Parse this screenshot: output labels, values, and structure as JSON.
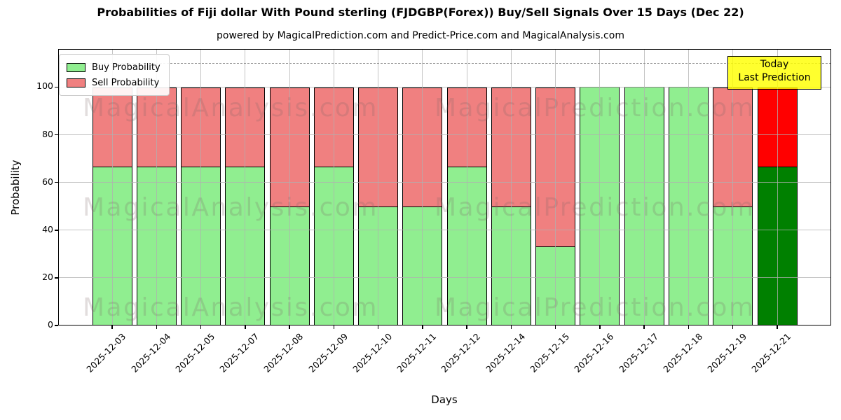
{
  "title": "Probabilities of Fiji dollar With Pound sterling (FJDGBP(Forex)) Buy/Sell Signals Over 15 Days (Dec 22)",
  "subtitle": "powered by MagicalPrediction.com and Predict-Price.com and MagicalAnalysis.com",
  "chart_data": {
    "type": "bar",
    "stacked": true,
    "title": "Probabilities of Fiji dollar With Pound sterling (FJDGBP(Forex)) Buy/Sell Signals Over 15 Days (Dec 22)",
    "xlabel": "Days",
    "ylabel": "Probability",
    "ylim": [
      0,
      116
    ],
    "yticks": [
      0,
      20,
      40,
      60,
      80,
      100
    ],
    "grid": true,
    "legend_position": "upper left",
    "dashed_threshold_y": 110,
    "categories": [
      "2025-12-03",
      "2025-12-04",
      "2025-12-05",
      "2025-12-07",
      "2025-12-08",
      "2025-12-09",
      "2025-12-10",
      "2025-12-11",
      "2025-12-12",
      "2025-12-14",
      "2025-12-15",
      "2025-12-16",
      "2025-12-17",
      "2025-12-18",
      "2025-12-19",
      "2025-12-21"
    ],
    "series": [
      {
        "name": "Buy Probability",
        "color": "#90ee90",
        "today_color": "#008000",
        "values": [
          66.67,
          66.67,
          66.67,
          66.67,
          50,
          66.67,
          50,
          50,
          66.67,
          50,
          33.33,
          100,
          100,
          100,
          50,
          66.67
        ]
      },
      {
        "name": "Sell Probability",
        "color": "#f08080",
        "today_color": "#ff0000",
        "values": [
          33.33,
          33.33,
          33.33,
          33.33,
          50,
          33.33,
          50,
          50,
          33.33,
          50,
          66.67,
          0,
          0,
          0,
          50,
          33.33
        ]
      }
    ],
    "today_index": 15
  },
  "annotation": {
    "line1": "Today",
    "line2": "Last Prediction",
    "bg_color": "#ffff00"
  },
  "watermarks": {
    "left_text": "MagicalAnalysis.com",
    "right_text": "MagicalPrediction.com"
  },
  "colors": {
    "buy": "#90ee90",
    "sell": "#f08080",
    "today_buy": "#008000",
    "today_sell": "#ff0000",
    "grid": "#b0b0b0",
    "annotation_bg": "#ffff00"
  }
}
